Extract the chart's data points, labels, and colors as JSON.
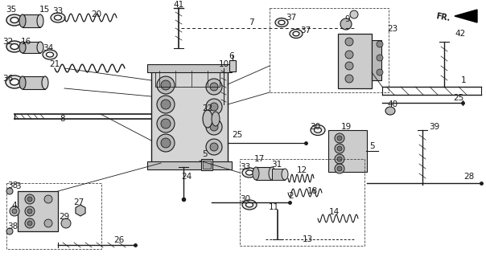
{
  "bg_color": "#ffffff",
  "line_color": "#1a1a1a",
  "fig_width": 6.04,
  "fig_height": 3.2,
  "dpi": 100,
  "gray_fill": "#c8c8c8",
  "dark_fill": "#888888",
  "mid_fill": "#b0b0b0"
}
